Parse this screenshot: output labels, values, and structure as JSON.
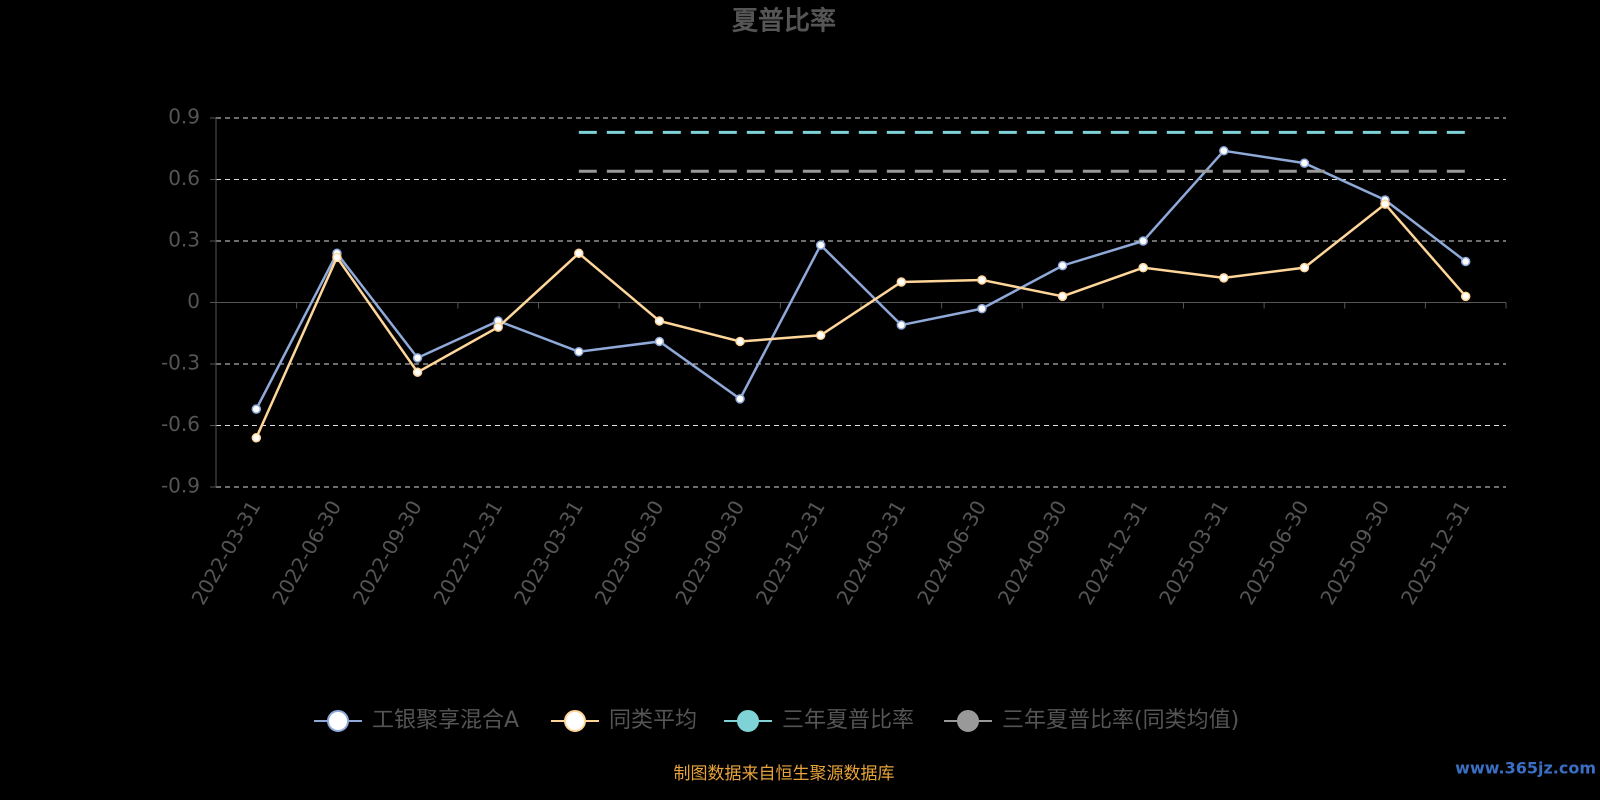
{
  "chart_data": {
    "type": "line",
    "title": "夏普比率",
    "categories": [
      "2022-03-31",
      "2022-06-30",
      "2022-09-30",
      "2022-12-31",
      "2023-03-31",
      "2023-06-30",
      "2023-09-30",
      "2023-12-31",
      "2024-03-31",
      "2024-06-30",
      "2024-09-30",
      "2024-12-31",
      "2025-03-31",
      "2025-06-30",
      "2025-09-30",
      "2025-12-31"
    ],
    "series": [
      {
        "name": "工银聚享混合A",
        "color": "#8fa9d9",
        "values": [
          -0.52,
          0.24,
          -0.27,
          -0.09,
          -0.24,
          -0.19,
          -0.47,
          0.28,
          -0.11,
          -0.03,
          0.18,
          0.3,
          0.74,
          0.68,
          0.5,
          0.2
        ]
      },
      {
        "name": "同类平均",
        "color": "#ffd699",
        "values": [
          -0.66,
          0.22,
          -0.34,
          -0.12,
          0.24,
          -0.09,
          -0.19,
          -0.16,
          0.1,
          0.11,
          0.03,
          0.17,
          0.12,
          0.17,
          0.48,
          0.03
        ]
      },
      {
        "name": "三年夏普比率",
        "color": "#7fd3d6",
        "dashed": true,
        "values": [
          null,
          null,
          null,
          null,
          0.83,
          0.83,
          0.83,
          0.83,
          0.83,
          0.83,
          0.83,
          0.83,
          0.83,
          0.83,
          0.83,
          0.83
        ]
      },
      {
        "name": "三年夏普比率(同类均值)",
        "color": "#999999",
        "dashed": true,
        "values": [
          null,
          null,
          null,
          null,
          0.64,
          0.64,
          0.64,
          0.64,
          0.64,
          0.64,
          0.64,
          0.64,
          0.64,
          0.64,
          0.64,
          0.64
        ]
      }
    ],
    "ylim": [
      -0.9,
      0.9
    ],
    "yticks": [
      -0.9,
      -0.6,
      -0.3,
      0,
      0.3,
      0.6,
      0.9
    ],
    "grid": true,
    "source": "制图数据来自恒生聚源数据库",
    "watermark": "www.365jz.com"
  }
}
